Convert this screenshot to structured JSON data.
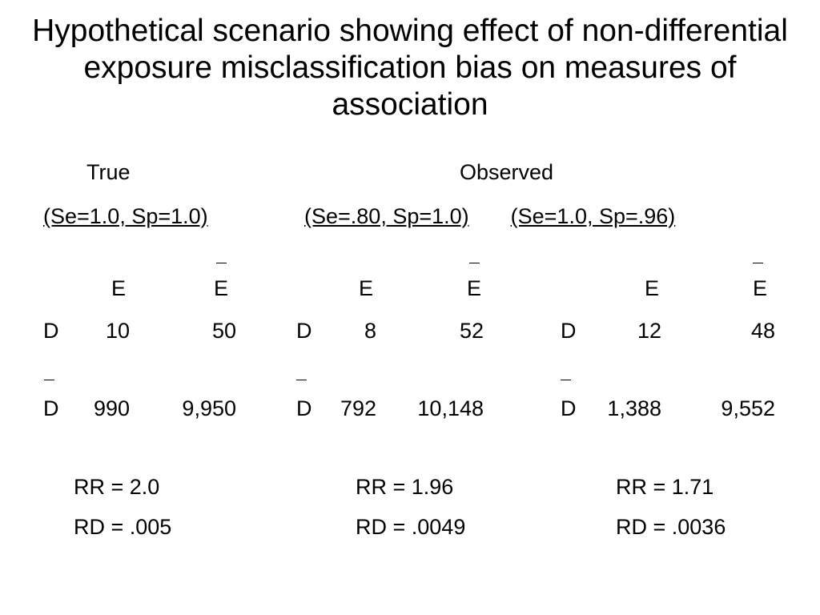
{
  "title": "Hypothetical scenario showing effect of non-differential exposure misclassification bias on measures of association",
  "labels": {
    "true": "True",
    "observed": "Observed",
    "exposed": "E",
    "disease": "D"
  },
  "panels": [
    {
      "heading": "(Se=1.0, Sp=1.0)",
      "cells": {
        "d_e": "10",
        "d_not_e": "50",
        "not_d_e": "990",
        "not_d_not_e": "9,950"
      },
      "rr": "RR = 2.0",
      "rd": "RD = .005"
    },
    {
      "heading": "(Se=.80, Sp=1.0)",
      "cells": {
        "d_e": "8",
        "d_not_e": "52",
        "not_d_e": "792",
        "not_d_not_e": "10,148"
      },
      "rr": "RR = 1.96",
      "rd": "RD = .0049"
    },
    {
      "heading": "(Se=1.0, Sp=.96)",
      "cells": {
        "d_e": "12",
        "d_not_e": "48",
        "not_d_e": "1,388",
        "not_d_not_e": "9,552"
      },
      "rr": "RR = 1.71",
      "rd": "RD = .0036"
    }
  ]
}
